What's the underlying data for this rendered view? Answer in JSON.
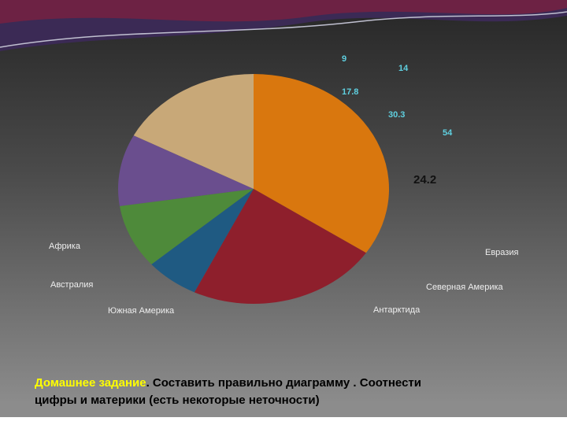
{
  "chart_data": {
    "type": "pie",
    "values": [
      34.4,
      22.8,
      6.4,
      9,
      10.1,
      17.3
    ],
    "colors": [
      "#d9770e",
      "#8e1f2c",
      "#1f5a82",
      "#4e8a3a",
      "#6a4e8e",
      "#c8a878"
    ],
    "annotations": [
      "9",
      "14",
      "17.8",
      "30.3",
      "54",
      "24.2"
    ],
    "labels": [
      "Африка",
      "Австралия",
      "Южная Америка",
      "Евразия",
      "Северная Америка",
      "Антарктида"
    ]
  },
  "task": {
    "highlight": "Домашнее задание",
    "line1": ". Составить правильно диаграмму . Соотнести",
    "line2": "цифры и материки (есть некоторые неточности)"
  }
}
